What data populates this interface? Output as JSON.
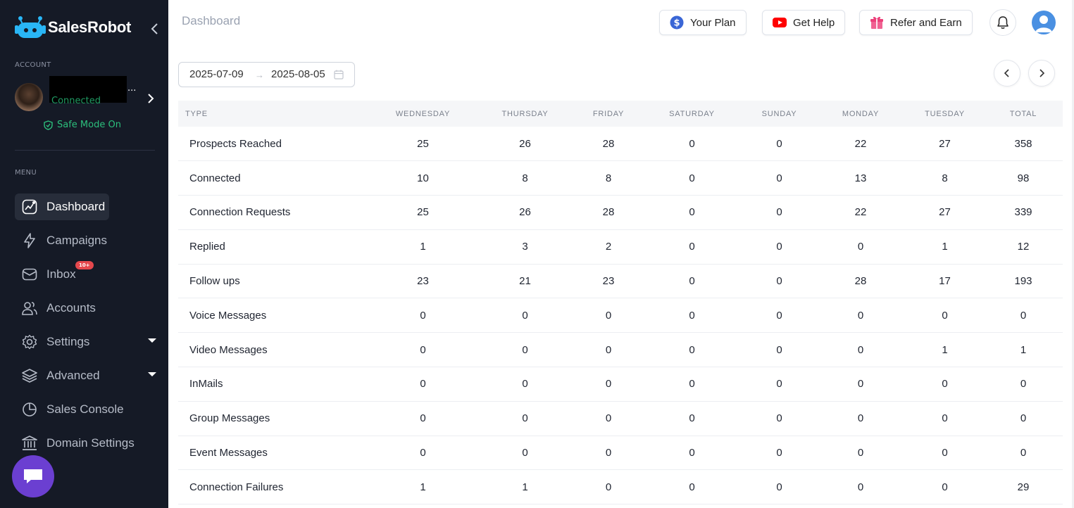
{
  "brand": {
    "name": "SalesRobot"
  },
  "sidebar": {
    "account_section_label": "ACCOUNT",
    "account": {
      "ellipsis": "...",
      "status": "Connected"
    },
    "safe_mode_label": "Safe Mode On",
    "menu_section_label": "MENU",
    "items": [
      {
        "label": "Dashboard",
        "icon": "dashboard-icon",
        "active": true
      },
      {
        "label": "Campaigns",
        "icon": "lightning-icon"
      },
      {
        "label": "Inbox",
        "icon": "inbox-icon",
        "badge": "10+"
      },
      {
        "label": "Accounts",
        "icon": "users-icon"
      },
      {
        "label": "Settings",
        "icon": "gear-icon",
        "expandable": true
      },
      {
        "label": "Advanced",
        "icon": "layers-icon",
        "expandable": true
      },
      {
        "label": "Sales Console",
        "icon": "pie-chart-icon"
      },
      {
        "label": "Domain Settings",
        "icon": "bank-icon"
      }
    ]
  },
  "header": {
    "breadcrumb": "Dashboard",
    "buttons": {
      "your_plan": "Your Plan",
      "get_help": "Get Help",
      "refer": "Refer and Earn"
    }
  },
  "date_range": {
    "start": "2025-07-09",
    "separator": "→",
    "end": "2025-08-05"
  },
  "table": {
    "columns": [
      "TYPE",
      "WEDNESDAY",
      "THURSDAY",
      "FRIDAY",
      "SATURDAY",
      "SUNDAY",
      "MONDAY",
      "TUESDAY",
      "TOTAL"
    ],
    "rows": [
      [
        "Prospects Reached",
        "25",
        "26",
        "28",
        "0",
        "0",
        "22",
        "27",
        "358"
      ],
      [
        "Connected",
        "10",
        "8",
        "8",
        "0",
        "0",
        "13",
        "8",
        "98"
      ],
      [
        "Connection Requests",
        "25",
        "26",
        "28",
        "0",
        "0",
        "22",
        "27",
        "339"
      ],
      [
        "Replied",
        "1",
        "3",
        "2",
        "0",
        "0",
        "0",
        "1",
        "12"
      ],
      [
        "Follow ups",
        "23",
        "21",
        "23",
        "0",
        "0",
        "28",
        "17",
        "193"
      ],
      [
        "Voice Messages",
        "0",
        "0",
        "0",
        "0",
        "0",
        "0",
        "0",
        "0"
      ],
      [
        "Video Messages",
        "0",
        "0",
        "0",
        "0",
        "0",
        "0",
        "1",
        "1"
      ],
      [
        "InMails",
        "0",
        "0",
        "0",
        "0",
        "0",
        "0",
        "0",
        "0"
      ],
      [
        "Group Messages",
        "0",
        "0",
        "0",
        "0",
        "0",
        "0",
        "0",
        "0"
      ],
      [
        "Event Messages",
        "0",
        "0",
        "0",
        "0",
        "0",
        "0",
        "0",
        "0"
      ],
      [
        "Connection Failures",
        "1",
        "1",
        "0",
        "0",
        "0",
        "0",
        "0",
        "29"
      ]
    ]
  },
  "colors": {
    "sidebar_bg": "#151a26",
    "accent_green": "#2cbf7c",
    "badge_red": "#e5484d",
    "chat_purple": "#6b3fd1"
  }
}
